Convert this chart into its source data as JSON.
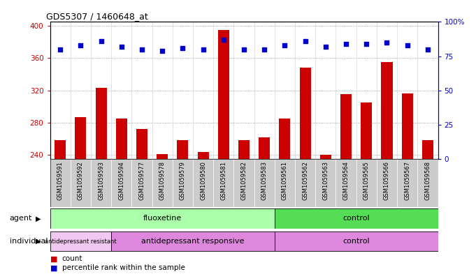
{
  "title": "GDS5307 / 1460648_at",
  "samples": [
    "GSM1059591",
    "GSM1059592",
    "GSM1059593",
    "GSM1059594",
    "GSM1059577",
    "GSM1059578",
    "GSM1059579",
    "GSM1059580",
    "GSM1059581",
    "GSM1059582",
    "GSM1059583",
    "GSM1059561",
    "GSM1059562",
    "GSM1059563",
    "GSM1059564",
    "GSM1059565",
    "GSM1059566",
    "GSM1059567",
    "GSM1059568"
  ],
  "counts": [
    258,
    287,
    323,
    285,
    272,
    241,
    258,
    244,
    395,
    258,
    262,
    285,
    348,
    240,
    315,
    305,
    355,
    316,
    258
  ],
  "percentiles": [
    80,
    83,
    86,
    82,
    80,
    79,
    81,
    80,
    87,
    80,
    80,
    83,
    86,
    82,
    84,
    84,
    85,
    83,
    80
  ],
  "ylim_left": [
    235,
    405
  ],
  "ylim_right": [
    0,
    100
  ],
  "yticks_left": [
    240,
    280,
    320,
    360,
    400
  ],
  "yticks_right": [
    0,
    25,
    50,
    75,
    100
  ],
  "bar_color": "#cc0000",
  "dot_color": "#0000cc",
  "gridline_color": "#888888",
  "plot_bg": "#ffffff",
  "label_bg": "#cccccc",
  "agent_fluoxetine_color": "#aaffaa",
  "agent_control_color": "#55dd55",
  "indiv_resistant_color": "#f0c8f0",
  "indiv_responsive_color": "#dd88dd",
  "indiv_control_color": "#dd88dd",
  "agent_groups": [
    {
      "label": "fluoxetine",
      "start": 0,
      "end": 11,
      "color_key": "agent_fluoxetine_color"
    },
    {
      "label": "control",
      "start": 11,
      "end": 19,
      "color_key": "agent_control_color"
    }
  ],
  "individual_groups": [
    {
      "label": "antidepressant resistant",
      "start": 0,
      "end": 3,
      "color_key": "indiv_resistant_color",
      "fontsize": 6
    },
    {
      "label": "antidepressant responsive",
      "start": 3,
      "end": 11,
      "color_key": "indiv_responsive_color",
      "fontsize": 8
    },
    {
      "label": "control",
      "start": 11,
      "end": 19,
      "color_key": "indiv_control_color",
      "fontsize": 8
    }
  ]
}
